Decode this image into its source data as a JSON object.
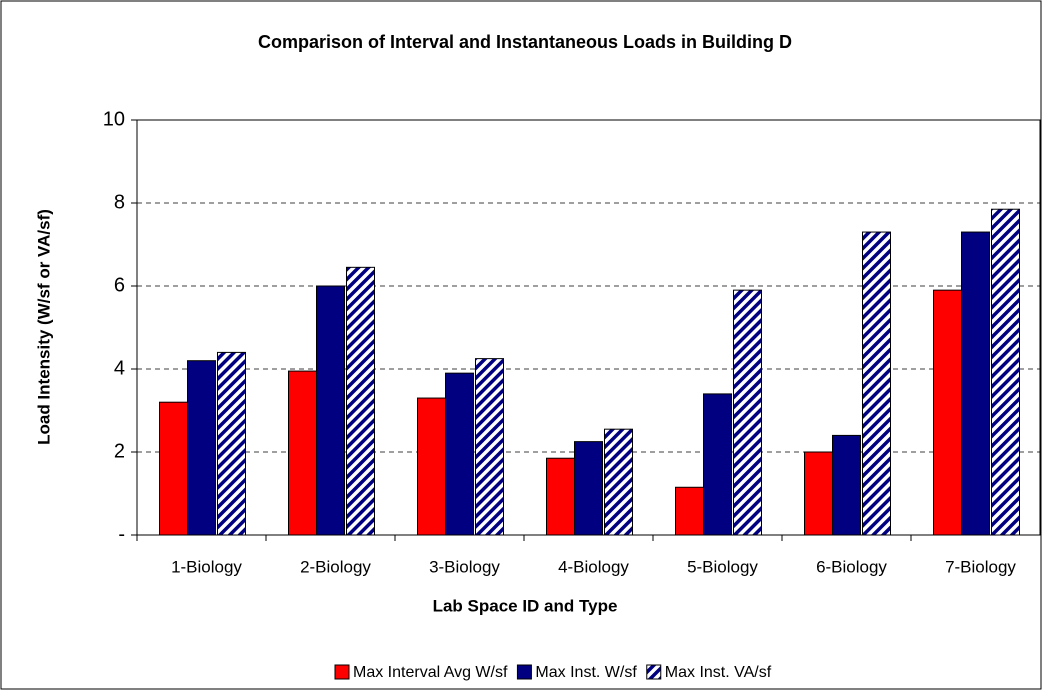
{
  "chart_data": {
    "type": "bar",
    "title": "Comparison of Interval and Instantaneous Loads in Building D",
    "xlabel": "Lab Space ID and Type",
    "ylabel": "Load Intensity (W/sf or VA/sf)",
    "categories": [
      "1-Biology",
      "2-Biology",
      "3-Biology",
      "4-Biology",
      "5-Biology",
      "6-Biology",
      "7-Biology"
    ],
    "series": [
      {
        "name": "Max Interval Avg W/sf",
        "color": "#ff0000",
        "values": [
          3.2,
          3.95,
          3.3,
          1.85,
          1.15,
          2.0,
          5.9
        ]
      },
      {
        "name": "Max Inst. W/sf",
        "color": "#000080",
        "values": [
          4.2,
          6.0,
          3.9,
          2.25,
          3.4,
          2.4,
          7.3
        ]
      },
      {
        "name": "Max Inst. VA/sf",
        "color": "#000080",
        "hatch": true,
        "values": [
          4.4,
          6.45,
          4.25,
          2.55,
          5.9,
          7.3,
          7.85
        ]
      }
    ],
    "ylim": [
      0,
      10
    ],
    "yticks": [
      {
        "value": 0,
        "label": "-"
      },
      2,
      4,
      6,
      8,
      10
    ],
    "grid": true,
    "legend": "bottom"
  }
}
